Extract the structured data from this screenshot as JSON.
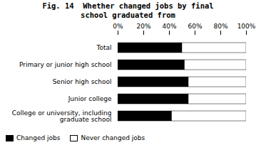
{
  "chart_data": {
    "type": "bar",
    "title": "Fig. 14  Whether changed jobs by final\nschool graduated from",
    "categories": [
      "Total",
      "Primary or junior high school",
      "Senior high school",
      "Junior college",
      "College or university, including\ngraduate school"
    ],
    "series": [
      {
        "name": "Changed jobs",
        "color": "#000000",
        "values": [
          50,
          52,
          55,
          55,
          42
        ]
      },
      {
        "name": "Never changed jobs",
        "color": "#ffffff",
        "values": [
          50,
          48,
          45,
          45,
          58
        ]
      }
    ],
    "xlim": [
      0,
      100
    ],
    "xticks": [
      {
        "value": 0,
        "label": "0%"
      },
      {
        "value": 20,
        "label": "20%"
      },
      {
        "value": 40,
        "label": "40%"
      },
      {
        "value": 60,
        "label": "60%"
      },
      {
        "value": 80,
        "label": "80%"
      },
      {
        "value": 100,
        "label": "100%"
      }
    ],
    "orientation": "horizontal",
    "stacked": true,
    "legend": "bottom"
  }
}
